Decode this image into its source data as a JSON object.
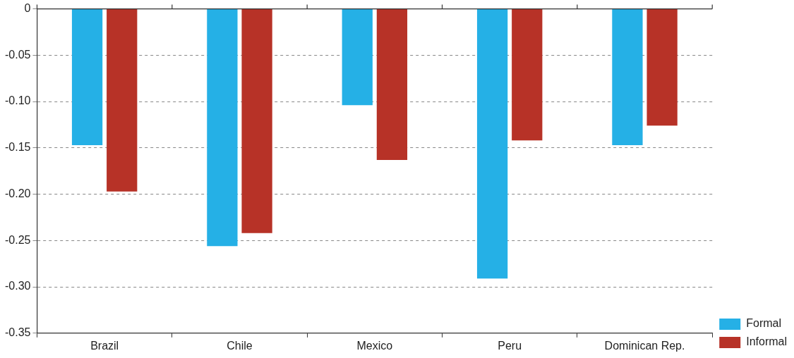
{
  "chart_data": {
    "type": "bar",
    "categories": [
      "Brazil",
      "Chile",
      "Mexico",
      "Peru",
      "Dominican Rep."
    ],
    "series": [
      {
        "name": "Formal",
        "color": "#25b0e6",
        "values": [
          -0.147,
          -0.256,
          -0.104,
          -0.291,
          -0.147
        ]
      },
      {
        "name": "Informal",
        "color": "#b73227",
        "values": [
          -0.197,
          -0.242,
          -0.163,
          -0.142,
          -0.126
        ]
      }
    ],
    "ylim": [
      -0.35,
      0
    ],
    "yticks": [
      {
        "value": -0.35,
        "label": "-0.35"
      },
      {
        "value": -0.3,
        "label": "-0.30"
      },
      {
        "value": -0.25,
        "label": "-0.25"
      },
      {
        "value": -0.2,
        "label": "-0.20"
      },
      {
        "value": -0.15,
        "label": "-0.15"
      },
      {
        "value": -0.1,
        "label": "-0.10"
      },
      {
        "value": -0.05,
        "label": "-0.05"
      },
      {
        "value": 0,
        "label": "0"
      }
    ],
    "grid": "y",
    "legend": "bottom right"
  }
}
